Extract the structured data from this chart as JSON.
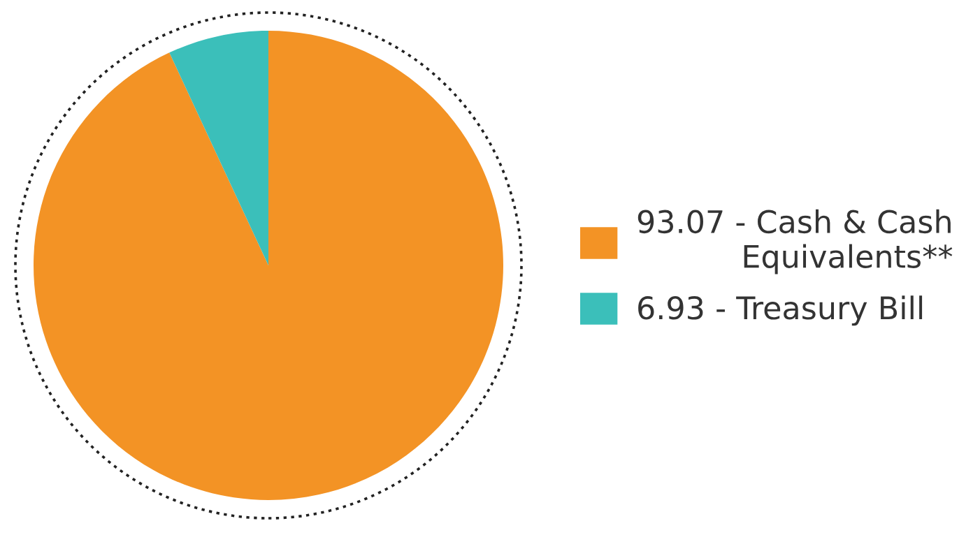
{
  "chart_data": {
    "type": "pie",
    "categories": [
      "93.07 - Cash & Cash\nEquivalents**",
      "6.93 - Treasury Bill"
    ],
    "values": [
      93.07,
      6.93
    ],
    "colors": [
      "#f39325",
      "#3bbfba"
    ],
    "legend": "right"
  }
}
